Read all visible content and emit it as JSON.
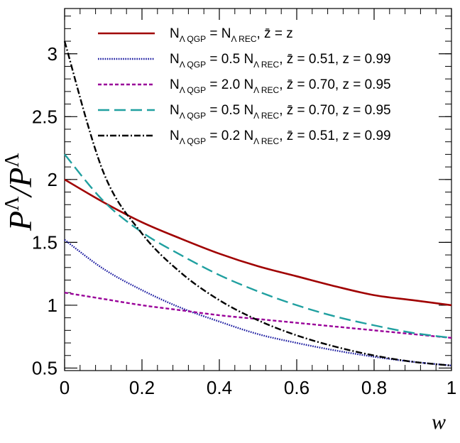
{
  "chart_data": {
    "type": "line",
    "title": "",
    "xlabel": "w",
    "ylabel": "P^Λ/P^Λ",
    "ylabel_parts": [
      "P",
      "Λ",
      "/",
      "P",
      "Λ"
    ],
    "xlim": [
      0,
      1
    ],
    "ylim": [
      0.48,
      3.36
    ],
    "x_ticks": [
      0,
      0.2,
      0.4,
      0.6,
      0.8,
      1
    ],
    "x_tick_labels": [
      "0",
      "0.2",
      "0.4",
      "0.6",
      "0.8",
      "1"
    ],
    "y_ticks": [
      0.5,
      1,
      1.5,
      2,
      2.5,
      3
    ],
    "y_tick_labels": [
      "0.5",
      "1",
      "1.5",
      "2",
      "2.5",
      "3"
    ],
    "x": [
      0,
      0.1,
      0.2,
      0.3,
      0.4,
      0.5,
      0.6,
      0.7,
      0.8,
      0.9,
      1.0
    ],
    "series": [
      {
        "name": "N_Λ QGP = N_Λ REC, z̄ = z",
        "color": "#a00000",
        "dash": "solid",
        "values": [
          2.0,
          1.82,
          1.66,
          1.53,
          1.41,
          1.31,
          1.23,
          1.15,
          1.08,
          1.04,
          1.0
        ],
        "legend": [
          {
            "t": "N"
          },
          {
            "t": "Λ QGP",
            "sub": true
          },
          {
            "t": " = N"
          },
          {
            "t": "Λ REC",
            "sub": true
          },
          {
            "t": ", z̄ =  z"
          }
        ]
      },
      {
        "name": "N_Λ QGP = 0.5 N_Λ REC, z̄ = 0.51, z = 0.99",
        "color": "#1a1aa0",
        "dash": "dotted",
        "values": [
          1.52,
          1.29,
          1.12,
          0.98,
          0.87,
          0.77,
          0.7,
          0.64,
          0.59,
          0.55,
          0.52
        ],
        "legend": [
          {
            "t": "N"
          },
          {
            "t": "Λ QGP",
            "sub": true
          },
          {
            "t": " = 0.5 N"
          },
          {
            "t": "Λ REC",
            "sub": true
          },
          {
            "t": ", z̄ = 0.51, z = 0.99"
          }
        ]
      },
      {
        "name": "N_Λ QGP = 2.0 N_Λ REC, z̄ = 0.70, z = 0.95",
        "color": "#990099",
        "dash": "short-dash",
        "values": [
          1.1,
          1.05,
          1.0,
          0.96,
          0.92,
          0.89,
          0.86,
          0.83,
          0.8,
          0.77,
          0.74
        ],
        "legend": [
          {
            "t": "N"
          },
          {
            "t": "Λ QGP",
            "sub": true
          },
          {
            "t": " = 2.0 N"
          },
          {
            "t": "Λ REC",
            "sub": true
          },
          {
            "t": ", z̄ = 0.70, z = 0.95"
          }
        ]
      },
      {
        "name": "N_Λ QGP = 0.5 N_Λ REC, z̄ = 0.70, z = 0.95",
        "color": "#20a0a0",
        "dash": "long-dash",
        "values": [
          2.2,
          1.83,
          1.58,
          1.4,
          1.24,
          1.11,
          1.0,
          0.91,
          0.84,
          0.78,
          0.74
        ],
        "legend": [
          {
            "t": "N"
          },
          {
            "t": "Λ QGP",
            "sub": true
          },
          {
            "t": " = 0.5 N"
          },
          {
            "t": "Λ REC",
            "sub": true
          },
          {
            "t": ", z̄ = 0.70, z = 0.95"
          }
        ]
      },
      {
        "name": "N_Λ QGP = 0.2 N_Λ REC, z̄ = 0.51, z = 0.99",
        "color": "#000000",
        "dash": "dash-dot",
        "values": [
          3.1,
          2.06,
          1.57,
          1.26,
          1.04,
          0.88,
          0.76,
          0.67,
          0.6,
          0.55,
          0.52
        ],
        "legend": [
          {
            "t": "N"
          },
          {
            "t": "Λ QGP",
            "sub": true
          },
          {
            "t": " = 0.2 N"
          },
          {
            "t": "Λ REC",
            "sub": true
          },
          {
            "t": ", z̄ = 0.51, z = 0.99"
          }
        ]
      }
    ],
    "legend_placement": "top-right",
    "grid": false
  }
}
